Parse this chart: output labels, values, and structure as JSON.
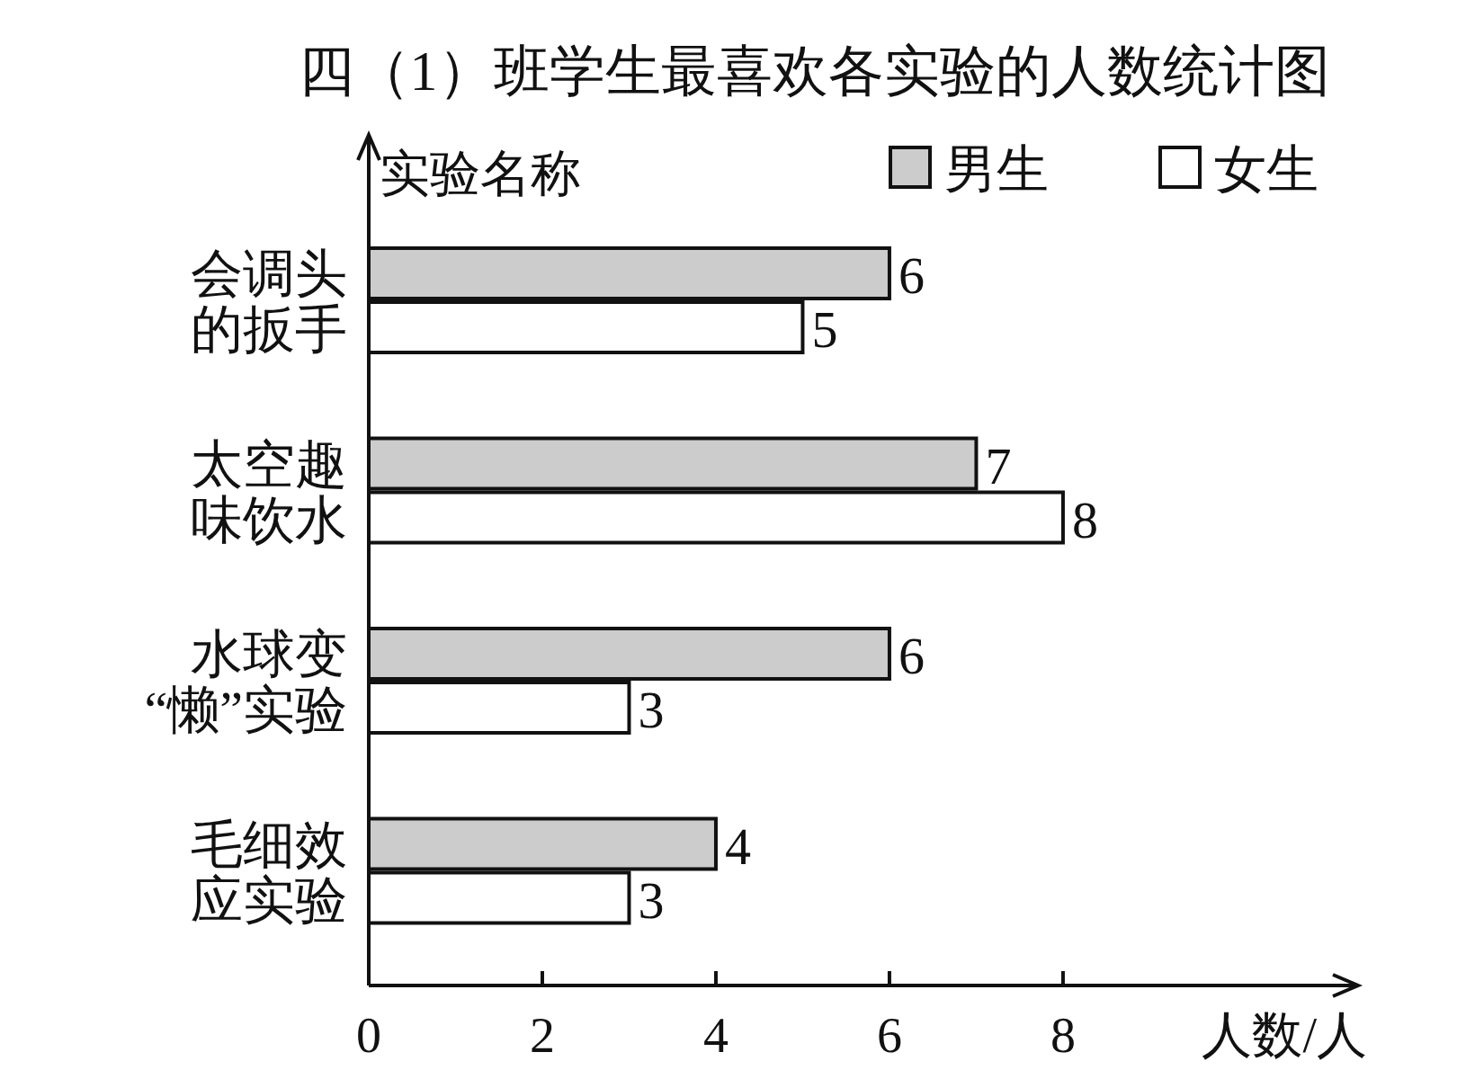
{
  "chart_data": {
    "type": "bar",
    "orientation": "horizontal",
    "title": "四（1）班学生最喜欢各实验的人数统计图",
    "xlabel": "人数/人",
    "ylabel": "实验名称",
    "categories": [
      "会调头的扳手",
      "太空趣味饮水",
      "水球变“懒”实验",
      "毛细效应实验"
    ],
    "series": [
      {
        "name": "男生",
        "color": "#cccccc",
        "values": [
          6,
          7,
          6,
          4
        ]
      },
      {
        "name": "女生",
        "color": "#ffffff",
        "values": [
          5,
          8,
          3,
          3
        ]
      }
    ],
    "xlim": [
      0,
      11.4
    ],
    "xticks": [
      0,
      2,
      4,
      6,
      8
    ],
    "data_labels": true,
    "legend": "top right",
    "grid": false
  }
}
